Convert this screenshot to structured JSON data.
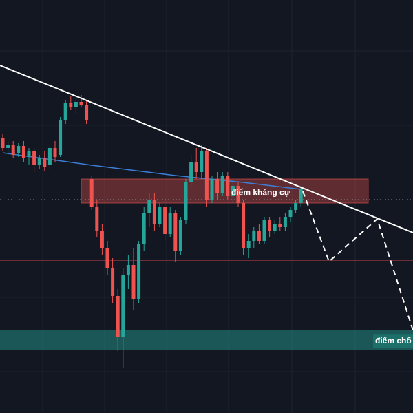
{
  "chart_data": {
    "type": "candlestick",
    "ylim": [
      0,
      600
    ],
    "up_color": "#26a69a",
    "down_color": "#ef5350",
    "open": [
      400,
      385,
      390,
      378,
      388,
      372,
      380,
      360,
      370,
      360,
      385,
      375,
      425,
      450,
      445,
      452,
      448,
      340,
      300,
      265,
      240,
      210,
      170,
      110,
      200,
      215,
      165,
      245,
      290,
      310,
      275,
      300,
      260,
      290,
      235,
      280,
      335,
      365,
      350,
      380,
      310,
      340,
      320,
      345,
      315,
      330,
      305,
      240,
      250,
      265,
      250,
      280,
      265,
      275,
      270,
      285,
      295,
      305
    ],
    "high": [
      405,
      395,
      395,
      392,
      395,
      385,
      385,
      375,
      380,
      388,
      395,
      430,
      455,
      460,
      458,
      462,
      455,
      345,
      310,
      275,
      250,
      225,
      180,
      210,
      230,
      240,
      250,
      300,
      320,
      320,
      305,
      310,
      300,
      295,
      285,
      340,
      375,
      385,
      390,
      385,
      345,
      350,
      350,
      350,
      335,
      335,
      310,
      260,
      270,
      275,
      285,
      285,
      280,
      285,
      290,
      300,
      310,
      330
    ],
    "low": [
      380,
      375,
      370,
      372,
      365,
      360,
      350,
      355,
      352,
      355,
      365,
      372,
      420,
      440,
      435,
      445,
      420,
      295,
      255,
      230,
      200,
      160,
      90,
      65,
      180,
      150,
      160,
      235,
      270,
      265,
      270,
      250,
      255,
      220,
      230,
      275,
      330,
      340,
      340,
      300,
      305,
      310,
      315,
      310,
      305,
      300,
      230,
      225,
      240,
      245,
      245,
      255,
      260,
      265,
      265,
      278,
      290,
      300
    ],
    "close": [
      385,
      390,
      375,
      388,
      370,
      380,
      360,
      370,
      358,
      385,
      372,
      425,
      450,
      445,
      452,
      448,
      425,
      300,
      265,
      240,
      210,
      170,
      110,
      200,
      215,
      165,
      245,
      290,
      310,
      275,
      300,
      260,
      290,
      235,
      280,
      335,
      365,
      350,
      380,
      310,
      340,
      320,
      345,
      315,
      330,
      305,
      240,
      250,
      265,
      250,
      280,
      265,
      275,
      270,
      285,
      295,
      305,
      325
    ],
    "ma": {
      "x": [
        0,
        17,
        33,
        46,
        57
      ],
      "values": [
        378,
        360,
        345,
        335,
        325
      ],
      "color": "#3d7fd9"
    },
    "resistance_zone": [
      305,
      340
    ],
    "support_zone": [
      92,
      120
    ],
    "level_lines": [
      222,
      310
    ],
    "annotations": [
      "điểm kháng cự",
      "điểm chố"
    ]
  }
}
